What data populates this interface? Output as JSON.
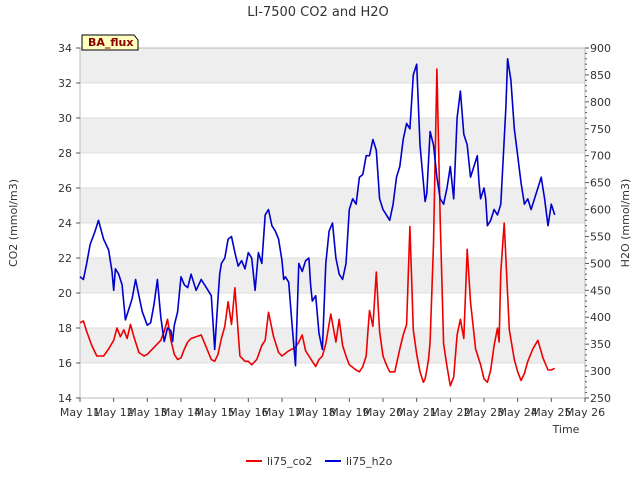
{
  "chart_data": {
    "type": "line",
    "title": "LI-7500 CO2 and H2O",
    "xlabel": "Time",
    "ylabel_left": "CO2 (mmol/m3)",
    "ylabel_right": "H2O (mmol/m3)",
    "xlim": [
      11,
      26
    ],
    "ylim_left": [
      14,
      34
    ],
    "ylim_right": [
      250,
      900
    ],
    "x_ticks": [
      11,
      12,
      13,
      14,
      15,
      16,
      17,
      18,
      19,
      20,
      21,
      22,
      23,
      24,
      25,
      26
    ],
    "x_tick_labels": [
      "May 11",
      "May 12",
      "May 13",
      "May 14",
      "May 15",
      "May 16",
      "May 17",
      "May 18",
      "May 19",
      "May 20",
      "May 21",
      "May 22",
      "May 23",
      "May 24",
      "May 25",
      "May 26"
    ],
    "y_left_ticks": [
      14,
      16,
      18,
      20,
      22,
      24,
      26,
      28,
      30,
      32,
      34
    ],
    "y_left_tick_labels": [
      "14",
      "16",
      "18",
      "20",
      "22",
      "24",
      "26",
      "28",
      "30",
      "32",
      "34"
    ],
    "y_right_ticks": [
      250,
      300,
      350,
      400,
      450,
      500,
      550,
      600,
      650,
      700,
      750,
      800,
      850,
      900
    ],
    "y_right_tick_labels": [
      "250",
      "300",
      "350",
      "400",
      "450",
      "500",
      "550",
      "600",
      "650",
      "700",
      "750",
      "800",
      "850",
      "900"
    ],
    "grid": "horizontal bands",
    "annotation": "BA_flux",
    "legend_position": "bottom",
    "series": [
      {
        "name": "li75_co2",
        "axis": "left",
        "color": "#ee0000",
        "x": [
          11.0,
          11.1,
          11.2,
          11.35,
          11.5,
          11.7,
          11.85,
          12.0,
          12.1,
          12.2,
          12.3,
          12.4,
          12.5,
          12.6,
          12.75,
          12.9,
          13.0,
          13.2,
          13.4,
          13.5,
          13.6,
          13.7,
          13.8,
          13.9,
          14.0,
          14.1,
          14.2,
          14.3,
          14.45,
          14.6,
          14.75,
          14.9,
          15.0,
          15.1,
          15.2,
          15.3,
          15.4,
          15.5,
          15.6,
          15.75,
          15.9,
          16.0,
          16.1,
          16.25,
          16.4,
          16.5,
          16.6,
          16.75,
          16.9,
          17.0,
          17.2,
          17.4,
          17.5,
          17.6,
          17.7,
          17.8,
          17.9,
          18.0,
          18.1,
          18.2,
          18.3,
          18.45,
          18.6,
          18.7,
          18.8,
          18.9,
          19.0,
          19.2,
          19.3,
          19.4,
          19.5,
          19.55,
          19.6,
          19.7,
          19.8,
          19.9,
          20.0,
          20.1,
          20.2,
          20.35,
          20.5,
          20.6,
          20.7,
          20.8,
          20.9,
          21.0,
          21.1,
          21.2,
          21.25,
          21.3,
          21.35,
          21.4,
          21.5,
          21.6,
          21.7,
          21.8,
          21.9,
          22.0,
          22.1,
          22.2,
          22.3,
          22.4,
          22.5,
          22.6,
          22.75,
          22.9,
          23.0,
          23.1,
          23.2,
          23.3,
          23.4,
          23.45,
          23.5,
          23.6,
          23.75,
          23.9,
          24.0,
          24.1,
          24.2,
          24.3,
          24.45,
          24.6,
          24.75,
          24.9,
          25.0,
          25.1
        ],
        "values": [
          18.3,
          18.4,
          17.8,
          17.0,
          16.4,
          16.4,
          16.8,
          17.3,
          18.0,
          17.5,
          17.9,
          17.4,
          18.2,
          17.5,
          16.6,
          16.4,
          16.5,
          16.9,
          17.3,
          17.8,
          18.5,
          17.3,
          16.5,
          16.2,
          16.3,
          16.8,
          17.2,
          17.4,
          17.5,
          17.6,
          16.9,
          16.2,
          16.1,
          16.5,
          17.4,
          18.1,
          19.5,
          18.2,
          20.3,
          16.4,
          16.1,
          16.1,
          15.9,
          16.2,
          17.0,
          17.3,
          18.9,
          17.5,
          16.6,
          16.4,
          16.7,
          16.9,
          17.2,
          17.6,
          16.7,
          16.4,
          16.1,
          15.8,
          16.2,
          16.4,
          17.1,
          18.8,
          17.2,
          18.5,
          17.0,
          16.4,
          15.9,
          15.6,
          15.5,
          15.8,
          16.4,
          17.8,
          19.0,
          18.1,
          21.2,
          17.8,
          16.4,
          15.9,
          15.5,
          15.5,
          16.8,
          17.6,
          18.2,
          23.8,
          17.9,
          16.5,
          15.5,
          14.9,
          15.1,
          15.6,
          16.2,
          17.2,
          22.8,
          32.8,
          24.2,
          17.1,
          15.8,
          14.7,
          15.2,
          17.6,
          18.5,
          17.4,
          22.5,
          19.5,
          16.8,
          15.9,
          15.1,
          14.9,
          15.6,
          17.0,
          18.0,
          17.2,
          21.2,
          24.0,
          17.9,
          16.2,
          15.5,
          15.0,
          15.4,
          16.1,
          16.8,
          17.3,
          16.3,
          15.6,
          15.6,
          15.7
        ]
      },
      {
        "name": "li75_h2o",
        "axis": "right",
        "color": "#0000cc",
        "x": [
          11.0,
          11.1,
          11.2,
          11.3,
          11.45,
          11.55,
          11.7,
          11.85,
          11.95,
          12.0,
          12.05,
          12.15,
          12.25,
          12.35,
          12.45,
          12.55,
          12.65,
          12.75,
          12.85,
          13.0,
          13.1,
          13.2,
          13.3,
          13.4,
          13.5,
          13.6,
          13.7,
          13.75,
          13.8,
          13.9,
          14.0,
          14.1,
          14.2,
          14.3,
          14.45,
          14.6,
          14.75,
          14.9,
          15.0,
          15.1,
          15.15,
          15.2,
          15.3,
          15.4,
          15.5,
          15.6,
          15.7,
          15.8,
          15.9,
          16.0,
          16.1,
          16.2,
          16.3,
          16.4,
          16.5,
          16.6,
          16.7,
          16.8,
          16.9,
          17.0,
          17.05,
          17.1,
          17.2,
          17.3,
          17.4,
          17.5,
          17.6,
          17.7,
          17.8,
          17.85,
          17.9,
          18.0,
          18.1,
          18.2,
          18.3,
          18.4,
          18.5,
          18.6,
          18.7,
          18.8,
          18.9,
          19.0,
          19.1,
          19.2,
          19.3,
          19.4,
          19.5,
          19.6,
          19.7,
          19.8,
          19.9,
          20.0,
          20.1,
          20.2,
          20.3,
          20.4,
          20.5,
          20.6,
          20.7,
          20.8,
          20.9,
          21.0,
          21.1,
          21.2,
          21.25,
          21.3,
          21.4,
          21.5,
          21.6,
          21.7,
          21.8,
          21.9,
          22.0,
          22.1,
          22.2,
          22.3,
          22.4,
          22.5,
          22.6,
          22.7,
          22.8,
          22.85,
          22.9,
          23.0,
          23.05,
          23.1,
          23.2,
          23.3,
          23.4,
          23.5,
          23.6,
          23.65,
          23.7,
          23.8,
          23.9,
          24.0,
          24.1,
          24.2,
          24.3,
          24.4,
          24.5,
          24.6,
          24.7,
          24.8,
          24.9,
          25.0,
          25.1
        ],
        "values": [
          475,
          470,
          500,
          535,
          560,
          580,
          545,
          525,
          485,
          450,
          490,
          480,
          460,
          395,
          415,
          435,
          470,
          440,
          410,
          385,
          390,
          425,
          470,
          400,
          355,
          380,
          375,
          355,
          385,
          410,
          475,
          460,
          455,
          480,
          450,
          470,
          455,
          440,
          340,
          435,
          480,
          500,
          510,
          545,
          550,
          520,
          495,
          505,
          490,
          520,
          510,
          450,
          520,
          500,
          590,
          600,
          570,
          560,
          545,
          505,
          470,
          475,
          465,
          385,
          310,
          500,
          485,
          505,
          510,
          460,
          430,
          440,
          370,
          340,
          500,
          560,
          575,
          510,
          480,
          470,
          500,
          600,
          620,
          610,
          660,
          665,
          700,
          700,
          730,
          710,
          620,
          600,
          590,
          580,
          610,
          660,
          680,
          730,
          760,
          750,
          850,
          870,
          720,
          650,
          615,
          630,
          745,
          720,
          660,
          620,
          610,
          640,
          680,
          620,
          770,
          820,
          740,
          720,
          660,
          680,
          700,
          650,
          620,
          640,
          620,
          570,
          580,
          600,
          590,
          610,
          730,
          790,
          880,
          840,
          750,
          700,
          650,
          610,
          620,
          600,
          620,
          640,
          660,
          620,
          570,
          610,
          590
        ]
      }
    ]
  }
}
